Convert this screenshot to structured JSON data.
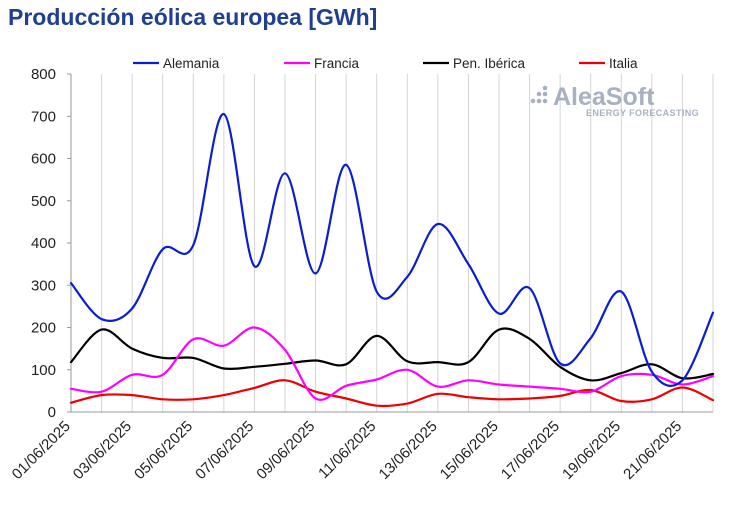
{
  "chart_data": {
    "type": "line",
    "title": "Producción eólica europea [GWh]",
    "xlabel": "",
    "ylabel": "",
    "ylim": [
      0,
      800
    ],
    "yticks": [
      0,
      100,
      200,
      300,
      400,
      500,
      600,
      700,
      800
    ],
    "grid": "vertical",
    "legend_position": "top",
    "x": [
      "01/06/2025",
      "02/06/2025",
      "03/06/2025",
      "04/06/2025",
      "05/06/2025",
      "06/06/2025",
      "07/06/2025",
      "08/06/2025",
      "09/06/2025",
      "10/06/2025",
      "11/06/2025",
      "12/06/2025",
      "13/06/2025",
      "14/06/2025",
      "15/06/2025",
      "16/06/2025",
      "17/06/2025",
      "18/06/2025",
      "19/06/2025",
      "20/06/2025",
      "21/06/2025",
      "22/06/2025"
    ],
    "x_tick_labels": [
      "01/06/2025",
      "03/06/2025",
      "05/06/2025",
      "07/06/2025",
      "09/06/2025",
      "11/06/2025",
      "13/06/2025",
      "15/06/2025",
      "17/06/2025",
      "19/06/2025",
      "21/06/2025"
    ],
    "series": [
      {
        "name": "Alemania",
        "color": "#0a1ed0",
        "values": [
          305,
          220,
          245,
          385,
          395,
          705,
          345,
          565,
          328,
          585,
          285,
          320,
          445,
          350,
          233,
          293,
          115,
          175,
          285,
          95,
          75,
          235
        ]
      },
      {
        "name": "Francia",
        "color": "#ff00ff",
        "values": [
          55,
          48,
          88,
          88,
          172,
          157,
          200,
          147,
          32,
          62,
          77,
          100,
          60,
          75,
          65,
          60,
          55,
          48,
          85,
          88,
          65,
          85
        ]
      },
      {
        "name": "Pen. Ibérica",
        "color": "#000000",
        "values": [
          118,
          195,
          150,
          128,
          128,
          103,
          107,
          114,
          122,
          113,
          180,
          120,
          118,
          118,
          195,
          173,
          107,
          75,
          92,
          113,
          80,
          90
        ]
      },
      {
        "name": "Italia",
        "color": "#ee0000",
        "values": [
          22,
          40,
          40,
          30,
          30,
          40,
          57,
          75,
          48,
          32,
          15,
          20,
          43,
          35,
          30,
          32,
          38,
          52,
          26,
          30,
          58,
          28
        ]
      }
    ]
  },
  "logo": {
    "name": "AleaSoft",
    "tagline": "ENERGY FORECASTING"
  }
}
